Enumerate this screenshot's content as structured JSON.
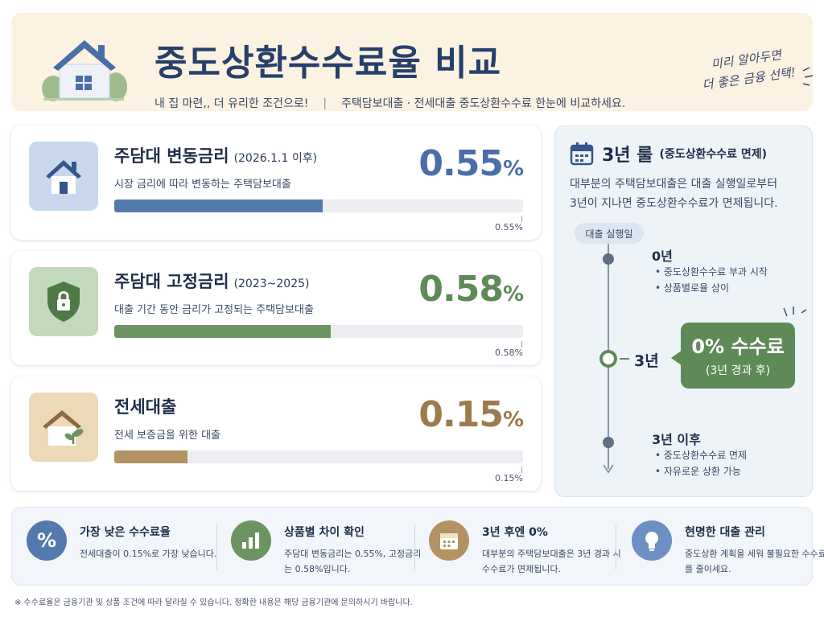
{
  "header": {
    "title": "중도상환수수료율 비교",
    "subtitle_left": "내 집 마련,, 더 유리한 조건으로!",
    "subtitle_separator": "|",
    "subtitle_right": "주택담보대출 · 전세대출 중도상환수수료 한눈에 비교하세요.",
    "handnote_line1": "미리 알아두면",
    "handnote_line2": "더 좋은 금융 선택!"
  },
  "cards": [
    {
      "name": "주담대 변동금리",
      "period": "(2026.1.1 이후)",
      "desc": "시장 금리에 따라 변동하는 주택담보대출",
      "rate_value": "0.55",
      "rate_unit": "%",
      "bar_label": "0.55%",
      "bar_fraction": 0.51,
      "color": "#5479ad",
      "icon_bg": "#c9d8ec",
      "icon": "house-icon"
    },
    {
      "name": "주담대 고정금리",
      "period": "(2023~2025)",
      "desc": "대출 기간 동안 금리가 고정되는 주택담보대출",
      "rate_value": "0.58",
      "rate_unit": "%",
      "bar_label": "0.58%",
      "bar_fraction": 0.53,
      "color": "#6b9460",
      "icon_bg": "#c4d8bd",
      "icon": "shield-lock-icon"
    },
    {
      "name": "전세대출",
      "period": "",
      "desc": "전세 보증금을 위한 대출",
      "rate_value": "0.15",
      "rate_unit": "%",
      "bar_label": "0.15%",
      "bar_fraction": 0.18,
      "color": "#b39364",
      "icon_bg": "#ecd9b7",
      "icon": "house-plant-icon"
    }
  ],
  "rule": {
    "title": "3년 룰",
    "subtitle": "(중도상환수수료 면제)",
    "desc_line1": "대부분의 주택담보대출은 대출 실행일로부터",
    "desc_line2": "3년이 지나면 중도상환수수료가 면제됩니다.",
    "start_pill": "대출 실행일",
    "step0": "0년",
    "step0_b1": "• 중도상환수수료 부과 시작",
    "step0_b2": "• 상품별로율 상이",
    "step3": "3년",
    "badge_main": "0% 수수료",
    "badge_sub": "(3년 경과 후)",
    "step_after": "3년 이후",
    "after_b1": "• 중도상환수수료 면제",
    "after_b2": "• 자유로운 상환 가능"
  },
  "summary": [
    {
      "title": "가장 낮은 수수료율",
      "text": "전세대출이 0.15%로 가장 낮습니다.",
      "icon": "percent-icon",
      "color": "#5479ad"
    },
    {
      "title": "상품별 차이 확인",
      "text": "주담대 변동금리는 0.55%, 고정금리는 0.58%입니다.",
      "icon": "bar-chart-icon",
      "color": "#6b9460"
    },
    {
      "title": "3년 후엔 0%",
      "text": "대부분의 주택담보대출은 3년 경과 시 수수료가 면제됩니다.",
      "icon": "calendar-icon",
      "color": "#b39364"
    },
    {
      "title": "현명한 대출 관리",
      "text": "중도상환 계획을 세워 불필요한 수수료를 줄이세요.",
      "icon": "lightbulb-icon",
      "color": "#6d8fc4"
    }
  ],
  "footnote": "※ 수수료율은 금융기관 및 상품 조건에 따라 달라질 수 있습니다. 정확한 내용은 해당 금융기관에 문의하시기 바랍니다."
}
